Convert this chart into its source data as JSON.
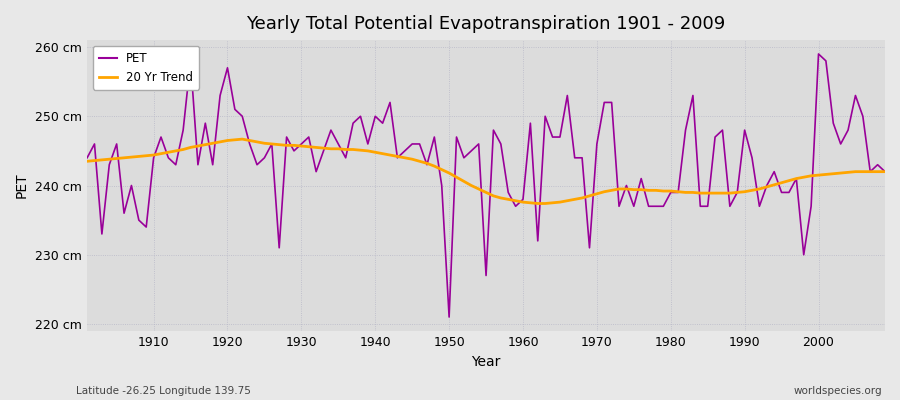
{
  "title": "Yearly Total Potential Evapotranspiration 1901 - 2009",
  "xlabel": "Year",
  "ylabel": "PET",
  "subtitle_left": "Latitude -26.25 Longitude 139.75",
  "subtitle_right": "worldspecies.org",
  "pet_color": "#990099",
  "trend_color": "#ffa500",
  "fig_bg_color": "#e8e8e8",
  "plot_bg_color": "#dcdcdc",
  "ylim": [
    219,
    261
  ],
  "yticks": [
    220,
    230,
    240,
    250,
    260
  ],
  "xlim": [
    1901,
    2009
  ],
  "xticks": [
    1910,
    1920,
    1930,
    1940,
    1950,
    1960,
    1970,
    1980,
    1990,
    2000
  ],
  "years": [
    1901,
    1902,
    1903,
    1904,
    1905,
    1906,
    1907,
    1908,
    1909,
    1910,
    1911,
    1912,
    1913,
    1914,
    1915,
    1916,
    1917,
    1918,
    1919,
    1920,
    1921,
    1922,
    1923,
    1924,
    1925,
    1926,
    1927,
    1928,
    1929,
    1930,
    1931,
    1932,
    1933,
    1934,
    1935,
    1936,
    1937,
    1938,
    1939,
    1940,
    1941,
    1942,
    1943,
    1944,
    1945,
    1946,
    1947,
    1948,
    1949,
    1950,
    1951,
    1952,
    1953,
    1954,
    1955,
    1956,
    1957,
    1958,
    1959,
    1960,
    1961,
    1962,
    1963,
    1964,
    1965,
    1966,
    1967,
    1968,
    1969,
    1970,
    1971,
    1972,
    1973,
    1974,
    1975,
    1976,
    1977,
    1978,
    1979,
    1980,
    1981,
    1982,
    1983,
    1984,
    1985,
    1986,
    1987,
    1988,
    1989,
    1990,
    1991,
    1992,
    1993,
    1994,
    1995,
    1996,
    1997,
    1998,
    1999,
    2000,
    2001,
    2002,
    2003,
    2004,
    2005,
    2006,
    2007,
    2008,
    2009
  ],
  "pet_values": [
    244,
    246,
    233,
    243,
    246,
    236,
    240,
    235,
    234,
    244,
    247,
    244,
    243,
    248,
    258,
    243,
    249,
    243,
    253,
    257,
    251,
    250,
    246,
    243,
    244,
    246,
    231,
    247,
    245,
    246,
    247,
    242,
    245,
    248,
    246,
    244,
    249,
    250,
    246,
    250,
    249,
    252,
    244,
    245,
    246,
    246,
    243,
    247,
    240,
    221,
    247,
    244,
    245,
    246,
    227,
    248,
    246,
    239,
    237,
    238,
    249,
    232,
    250,
    247,
    247,
    253,
    244,
    244,
    231,
    246,
    252,
    252,
    237,
    240,
    237,
    241,
    237,
    237,
    237,
    239,
    239,
    248,
    253,
    237,
    237,
    247,
    248,
    237,
    239,
    248,
    244,
    237,
    240,
    242,
    239,
    239,
    241,
    230,
    237,
    259,
    258,
    249,
    246,
    248,
    253,
    250,
    242,
    243,
    242
  ],
  "trend_values": [
    243.5,
    243.6,
    243.7,
    243.8,
    243.9,
    244.0,
    244.1,
    244.2,
    244.3,
    244.4,
    244.6,
    244.8,
    245.0,
    245.2,
    245.5,
    245.7,
    245.9,
    246.1,
    246.3,
    246.5,
    246.6,
    246.7,
    246.5,
    246.3,
    246.1,
    246.0,
    245.9,
    245.8,
    245.8,
    245.7,
    245.6,
    245.5,
    245.4,
    245.3,
    245.3,
    245.2,
    245.2,
    245.1,
    245.0,
    244.8,
    244.6,
    244.4,
    244.2,
    244.0,
    243.8,
    243.5,
    243.2,
    242.8,
    242.3,
    241.8,
    241.2,
    240.6,
    240.0,
    239.5,
    239.0,
    238.5,
    238.2,
    238.0,
    237.8,
    237.6,
    237.5,
    237.4,
    237.4,
    237.5,
    237.6,
    237.8,
    238.0,
    238.2,
    238.5,
    238.8,
    239.1,
    239.3,
    239.5,
    239.5,
    239.4,
    239.4,
    239.3,
    239.3,
    239.2,
    239.2,
    239.1,
    239.0,
    239.0,
    238.9,
    238.9,
    238.9,
    238.9,
    238.9,
    239.0,
    239.1,
    239.3,
    239.5,
    239.8,
    240.1,
    240.4,
    240.7,
    241.0,
    241.2,
    241.4,
    241.5,
    241.6,
    241.7,
    241.8,
    241.9,
    242.0,
    242.0,
    242.0,
    242.0,
    242.0
  ]
}
